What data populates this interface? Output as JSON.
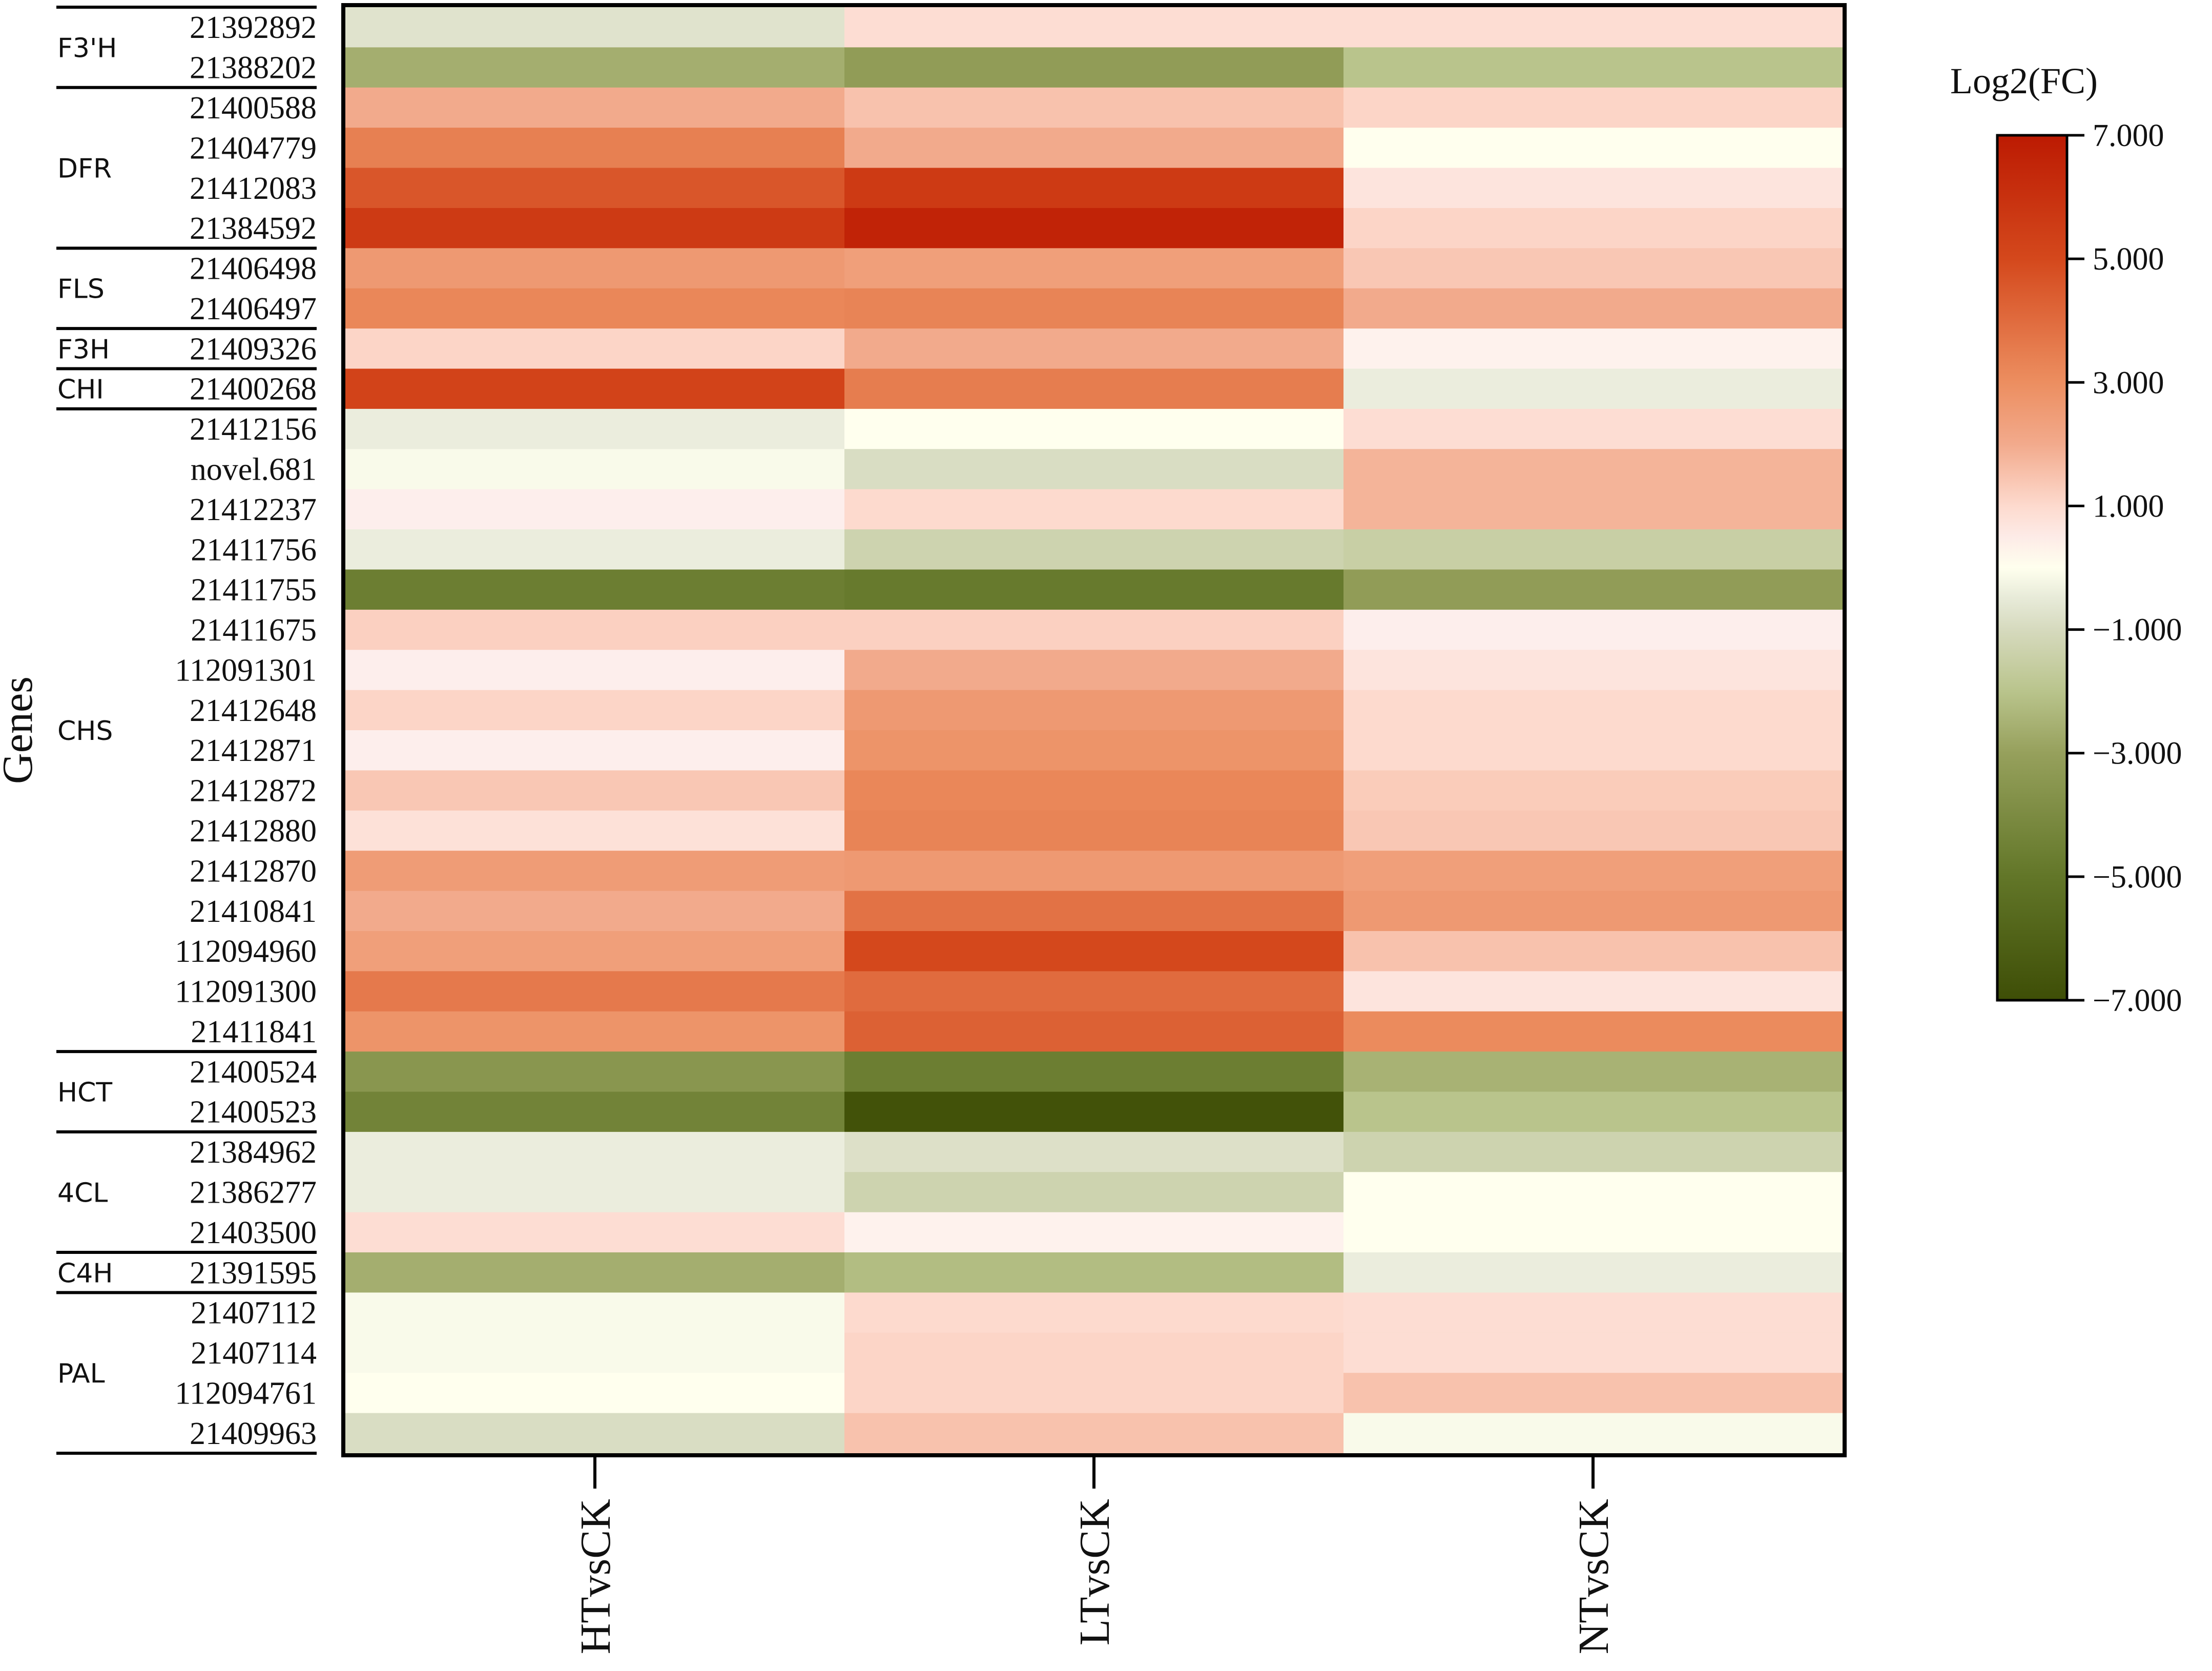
{
  "chart_data": {
    "type": "heatmap",
    "ylabel": "Genes",
    "legend_title": "Log2(FC)",
    "columns": [
      "HTvsCK",
      "LTvsCK",
      "NTvsCK"
    ],
    "color_range": [
      -7,
      7
    ],
    "colorbar_ticks": [
      "7.000",
      "5.000",
      "3.000",
      "1.000",
      "−1.000",
      "−3.000",
      "−5.000",
      "−7.000"
    ],
    "colorbar_tick_values": [
      7,
      5,
      3,
      1,
      -1,
      -3,
      -5,
      -7
    ],
    "groups": [
      {
        "name": "F3'H",
        "count": 2
      },
      {
        "name": "DFR",
        "count": 4
      },
      {
        "name": "FLS",
        "count": 2
      },
      {
        "name": "F3H",
        "count": 1
      },
      {
        "name": "CHI",
        "count": 1
      },
      {
        "name": "CHS",
        "count": 16
      },
      {
        "name": "HCT",
        "count": 2
      },
      {
        "name": "4CL",
        "count": 3
      },
      {
        "name": "C4H",
        "count": 1
      },
      {
        "name": "PAL",
        "count": 4
      }
    ],
    "rows": [
      {
        "gene": "21392892",
        "values": [
          -0.7,
          0.9,
          0.9
        ]
      },
      {
        "gene": "21388202",
        "values": [
          -2.6,
          -3.2,
          -2.0
        ]
      },
      {
        "gene": "21400588",
        "values": [
          2.0,
          1.5,
          1.1
        ]
      },
      {
        "gene": "21404779",
        "values": [
          3.4,
          2.0,
          0.0
        ]
      },
      {
        "gene": "21412083",
        "values": [
          4.6,
          5.6,
          0.7
        ]
      },
      {
        "gene": "21384592",
        "values": [
          5.6,
          6.6,
          1.1
        ]
      },
      {
        "gene": "21406498",
        "values": [
          2.6,
          2.4,
          1.4
        ]
      },
      {
        "gene": "21406497",
        "values": [
          3.2,
          3.3,
          2.0
        ]
      },
      {
        "gene": "21409326",
        "values": [
          1.1,
          2.0,
          0.3
        ]
      },
      {
        "gene": "21400268",
        "values": [
          5.2,
          3.5,
          -0.4
        ]
      },
      {
        "gene": "21412156",
        "values": [
          -0.4,
          0.0,
          0.9
        ]
      },
      {
        "gene": "novel.681",
        "values": [
          -0.1,
          -0.9,
          1.8
        ]
      },
      {
        "gene": "21412237",
        "values": [
          0.4,
          1.0,
          1.8
        ]
      },
      {
        "gene": "21411756",
        "values": [
          -0.4,
          -1.3,
          -1.5
        ]
      },
      {
        "gene": "21411755",
        "values": [
          -4.6,
          -4.8,
          -3.2
        ]
      },
      {
        "gene": "21411675",
        "values": [
          1.2,
          1.2,
          0.4
        ]
      },
      {
        "gene": "112091301",
        "values": [
          0.4,
          2.0,
          0.7
        ]
      },
      {
        "gene": "21412648",
        "values": [
          1.1,
          2.6,
          1.0
        ]
      },
      {
        "gene": "21412871",
        "values": [
          0.4,
          2.8,
          1.0
        ]
      },
      {
        "gene": "21412872",
        "values": [
          1.4,
          3.2,
          1.3
        ]
      },
      {
        "gene": "21412880",
        "values": [
          0.8,
          3.3,
          1.4
        ]
      },
      {
        "gene": "21412870",
        "values": [
          2.5,
          2.6,
          2.4
        ]
      },
      {
        "gene": "21410841",
        "values": [
          2.0,
          3.8,
          2.6
        ]
      },
      {
        "gene": "112094960",
        "values": [
          2.4,
          5.0,
          1.5
        ]
      },
      {
        "gene": "112091300",
        "values": [
          3.6,
          4.0,
          0.7
        ]
      },
      {
        "gene": "21411841",
        "values": [
          2.8,
          4.3,
          3.1
        ]
      },
      {
        "gene": "21400524",
        "values": [
          -3.5,
          -4.6,
          -2.5
        ]
      },
      {
        "gene": "21400523",
        "values": [
          -4.4,
          -6.8,
          -2.0
        ]
      },
      {
        "gene": "21384962",
        "values": [
          -0.4,
          -0.8,
          -1.3
        ]
      },
      {
        "gene": "21386277",
        "values": [
          -0.4,
          -1.3,
          0.0
        ]
      },
      {
        "gene": "21403500",
        "values": [
          0.9,
          0.3,
          0.0
        ]
      },
      {
        "gene": "21391595",
        "values": [
          -2.6,
          -2.2,
          -0.4
        ]
      },
      {
        "gene": "21407112",
        "values": [
          -0.1,
          1.0,
          0.9
        ]
      },
      {
        "gene": "21407114",
        "values": [
          -0.1,
          1.1,
          0.9
        ]
      },
      {
        "gene": "112094761",
        "values": [
          0.0,
          1.1,
          1.5
        ]
      },
      {
        "gene": "21409963",
        "values": [
          -0.9,
          1.5,
          -0.1
        ]
      }
    ]
  }
}
